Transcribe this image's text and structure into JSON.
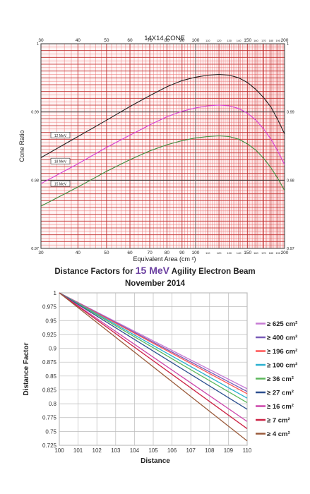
{
  "chart_data": [
    {
      "type": "line",
      "title": "14X14 CONE",
      "xlabel": "Equivalent Area (cm ²)",
      "ylabel": "Cone Ratio",
      "x_scale": "log",
      "xlim": [
        30,
        200
      ],
      "ylim": [
        0.97,
        1
      ],
      "grid": true,
      "x_tick_labels_top": [
        "30",
        "40",
        "50",
        "60",
        "70",
        "80",
        "90",
        "100",
        "110",
        "120",
        "130",
        "140",
        "150",
        "160",
        "170",
        "180",
        "190",
        "200"
      ],
      "x_tick_labels_bottom": [
        "30",
        "40",
        "50",
        "60",
        "70",
        "80",
        "90",
        "100",
        "110",
        "120",
        "130",
        "140",
        "150",
        "160",
        "170",
        "180",
        "190",
        "200"
      ],
      "y_tick_labels_left": [
        "1",
        "0.99",
        "0.98",
        "0.97"
      ],
      "y_tick_labels_right": [
        "1",
        "0.99",
        "0.98",
        "0.97"
      ],
      "series": [
        {
          "name": "12 MeV",
          "color": "#222222",
          "x": [
            30,
            40,
            50,
            60,
            70,
            80,
            90,
            100,
            110,
            120,
            130,
            140,
            150,
            160,
            170,
            180,
            190,
            200
          ],
          "y": [
            0.9833,
            0.9864,
            0.9888,
            0.9908,
            0.9924,
            0.9937,
            0.9946,
            0.9951,
            0.9954,
            0.9955,
            0.9954,
            0.995,
            0.9943,
            0.9933,
            0.9921,
            0.9907,
            0.9888,
            0.9868
          ]
        },
        {
          "name": "18 MeV",
          "color": "#d63fd6",
          "x": [
            30,
            40,
            50,
            60,
            70,
            80,
            90,
            100,
            110,
            120,
            130,
            140,
            150,
            160,
            170,
            180,
            190,
            200
          ],
          "y": [
            0.9795,
            0.9824,
            0.9848,
            0.9866,
            0.9881,
            0.9893,
            0.9901,
            0.9906,
            0.9909,
            0.991,
            0.9909,
            0.9905,
            0.9898,
            0.9888,
            0.9875,
            0.986,
            0.9842,
            0.9823
          ]
        },
        {
          "name": "15 MeV",
          "color": "#3d8c3d",
          "x": [
            30,
            40,
            50,
            60,
            70,
            80,
            90,
            100,
            110,
            120,
            130,
            140,
            150,
            160,
            170,
            180,
            190,
            200
          ],
          "y": [
            0.9762,
            0.979,
            0.9813,
            0.983,
            0.9843,
            0.9852,
            0.9858,
            0.9862,
            0.9864,
            0.9865,
            0.9864,
            0.986,
            0.9853,
            0.9844,
            0.9832,
            0.9818,
            0.9802,
            0.9785
          ]
        }
      ]
    },
    {
      "type": "line",
      "title": "Distance Factors for",
      "title_highlight": "15 MeV",
      "title_suffix": "Agility Electron Beam",
      "subtitle": "November 2014",
      "xlabel": "Distance",
      "ylabel": "Distance Factor",
      "xlim": [
        100,
        110
      ],
      "ylim": [
        0.725,
        1
      ],
      "grid": true,
      "legend_position": "right",
      "x_ticks": [
        "100",
        "101",
        "102",
        "103",
        "104",
        "105",
        "106",
        "107",
        "108",
        "109",
        "110"
      ],
      "y_ticks": [
        "0.725",
        "0.75",
        "0.775",
        "0.8",
        "0.825",
        "0.85",
        "0.875",
        "0.9",
        "0.925",
        "0.95",
        "0.975",
        "1"
      ],
      "series": [
        {
          "name": "≥ 625 cm²",
          "color": "#c77bd4",
          "x": [
            100,
            110
          ],
          "y": [
            1,
            0.827
          ]
        },
        {
          "name": "≥ 400 cm²",
          "color": "#7a5cb8",
          "x": [
            100,
            110
          ],
          "y": [
            1,
            0.822
          ]
        },
        {
          "name": "≥ 196 cm²",
          "color": "#ff5555",
          "x": [
            100,
            110
          ],
          "y": [
            1,
            0.818
          ]
        },
        {
          "name": "≥ 100 cm²",
          "color": "#2ab0d0",
          "x": [
            100,
            110
          ],
          "y": [
            1,
            0.81
          ]
        },
        {
          "name": "≥ 36 cm²",
          "color": "#5cb85c",
          "x": [
            100,
            110
          ],
          "y": [
            1,
            0.802
          ]
        },
        {
          "name": "≥ 27 cm²",
          "color": "#2c4f8f",
          "x": [
            100,
            110
          ],
          "y": [
            1,
            0.79
          ]
        },
        {
          "name": "≥ 16 cm²",
          "color": "#cc44aa",
          "x": [
            100,
            110
          ],
          "y": [
            1,
            0.768
          ]
        },
        {
          "name": "≥ 7 cm²",
          "color": "#cc2244",
          "x": [
            100,
            110
          ],
          "y": [
            1,
            0.755
          ]
        },
        {
          "name": "≥ 4 cm²",
          "color": "#9a5a3a",
          "x": [
            100,
            110
          ],
          "y": [
            1,
            0.733
          ]
        }
      ]
    }
  ]
}
